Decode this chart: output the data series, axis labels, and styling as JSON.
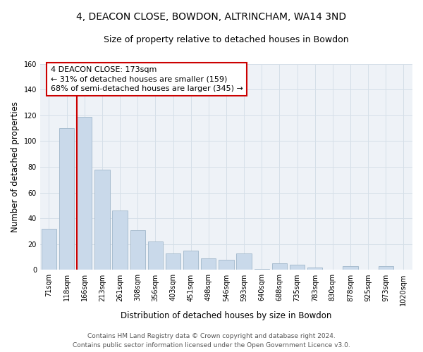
{
  "title": "4, DEACON CLOSE, BOWDON, ALTRINCHAM, WA14 3ND",
  "subtitle": "Size of property relative to detached houses in Bowdon",
  "xlabel": "Distribution of detached houses by size in Bowdon",
  "ylabel": "Number of detached properties",
  "bar_labels": [
    "71sqm",
    "118sqm",
    "166sqm",
    "213sqm",
    "261sqm",
    "308sqm",
    "356sqm",
    "403sqm",
    "451sqm",
    "498sqm",
    "546sqm",
    "593sqm",
    "640sqm",
    "688sqm",
    "735sqm",
    "783sqm",
    "830sqm",
    "878sqm",
    "925sqm",
    "973sqm",
    "1020sqm"
  ],
  "bar_values": [
    32,
    110,
    119,
    78,
    46,
    31,
    22,
    13,
    15,
    9,
    8,
    13,
    1,
    5,
    4,
    2,
    0,
    3,
    0,
    3,
    0
  ],
  "property_line_index": 2,
  "bar_color": "#c9d9ea",
  "bar_edge_color": "#a8bdd0",
  "property_line_color": "#cc0000",
  "annotation_line1": "4 DEACON CLOSE: 173sqm",
  "annotation_line2": "← 31% of detached houses are smaller (159)",
  "annotation_line3": "68% of semi-detached houses are larger (345) →",
  "annotation_box_color": "#ffffff",
  "annotation_box_edge": "#cc0000",
  "ylim": [
    0,
    160
  ],
  "yticks": [
    0,
    20,
    40,
    60,
    80,
    100,
    120,
    140,
    160
  ],
  "grid_color": "#d5dfe8",
  "footer_line1": "Contains HM Land Registry data © Crown copyright and database right 2024.",
  "footer_line2": "Contains public sector information licensed under the Open Government Licence v3.0.",
  "title_fontsize": 10,
  "subtitle_fontsize": 9,
  "ylabel_fontsize": 8.5,
  "xlabel_fontsize": 8.5,
  "tick_fontsize": 7,
  "footer_fontsize": 6.5,
  "annotation_fontsize": 8,
  "bg_color": "#ffffff",
  "plot_bg_color": "#eef2f7"
}
